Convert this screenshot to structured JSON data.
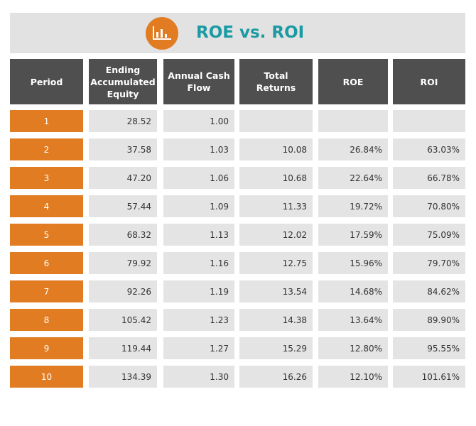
{
  "header": {
    "title": "ROE vs. ROI"
  },
  "table": {
    "columns": [
      "Period",
      "Ending Accumulated Equity",
      "Annual Cash Flow",
      "Total Returns",
      "ROE",
      "ROI"
    ],
    "rows": [
      [
        "1",
        "28.52",
        "1.00",
        null,
        null,
        null
      ],
      [
        "2",
        "37.58",
        "1.03",
        "10.08",
        "26.84%",
        "63.03%"
      ],
      [
        "3",
        "47.20",
        "1.06",
        "10.68",
        "22.64%",
        "66.78%"
      ],
      [
        "4",
        "57.44",
        "1.09",
        "11.33",
        "19.72%",
        "70.80%"
      ],
      [
        "5",
        "68.32",
        "1.13",
        "12.02",
        "17.59%",
        "75.09%"
      ],
      [
        "6",
        "79.92",
        "1.16",
        "12.75",
        "15.96%",
        "79.70%"
      ],
      [
        "7",
        "92.26",
        "1.19",
        "13.54",
        "14.68%",
        "84.62%"
      ],
      [
        "8",
        "105.42",
        "1.23",
        "14.38",
        "13.64%",
        "89.90%"
      ],
      [
        "9",
        "119.44",
        "1.27",
        "15.29",
        "12.80%",
        "95.55%"
      ],
      [
        "10",
        "134.39",
        "1.30",
        "16.26",
        "12.10%",
        "101.61%"
      ]
    ]
  }
}
